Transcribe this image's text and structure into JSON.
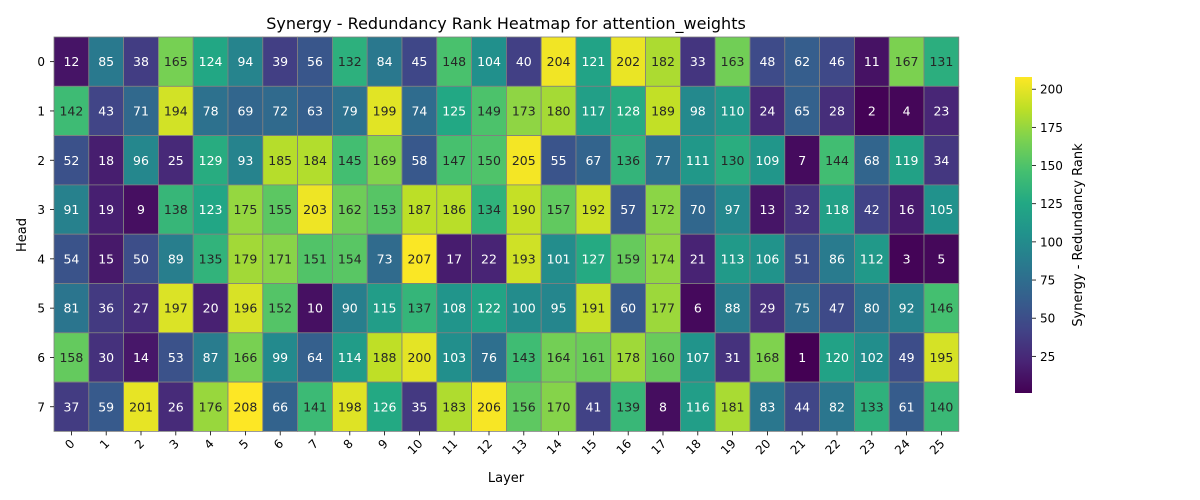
{
  "chart_data": {
    "type": "heatmap",
    "title": "Synergy - Redundancy Rank Heatmap for attention_weights",
    "xlabel": "Layer",
    "ylabel": "Head",
    "x_categories": [
      "0",
      "1",
      "2",
      "3",
      "4",
      "5",
      "6",
      "7",
      "8",
      "9",
      "10",
      "11",
      "12",
      "13",
      "14",
      "15",
      "16",
      "17",
      "18",
      "19",
      "20",
      "21",
      "22",
      "23",
      "24",
      "25"
    ],
    "y_categories": [
      "0",
      "1",
      "2",
      "3",
      "4",
      "5",
      "6",
      "7"
    ],
    "values": [
      [
        12,
        85,
        38,
        165,
        124,
        94,
        39,
        56,
        132,
        84,
        45,
        148,
        104,
        40,
        204,
        121,
        202,
        182,
        33,
        163,
        48,
        62,
        46,
        11,
        167,
        131
      ],
      [
        142,
        43,
        71,
        194,
        78,
        69,
        72,
        63,
        79,
        199,
        74,
        125,
        149,
        173,
        180,
        117,
        128,
        189,
        98,
        110,
        24,
        65,
        28,
        2,
        4,
        23
      ],
      [
        52,
        18,
        96,
        25,
        129,
        93,
        185,
        184,
        145,
        169,
        58,
        147,
        150,
        205,
        55,
        67,
        136,
        77,
        111,
        130,
        109,
        7,
        144,
        68,
        119,
        34
      ],
      [
        91,
        19,
        9,
        138,
        123,
        175,
        155,
        203,
        162,
        153,
        187,
        186,
        134,
        190,
        157,
        192,
        57,
        172,
        70,
        97,
        13,
        32,
        118,
        42,
        16,
        105
      ],
      [
        54,
        15,
        50,
        89,
        135,
        179,
        171,
        151,
        154,
        73,
        207,
        17,
        22,
        193,
        101,
        127,
        159,
        174,
        21,
        113,
        106,
        51,
        86,
        112,
        3,
        5
      ],
      [
        81,
        36,
        27,
        197,
        20,
        196,
        152,
        10,
        90,
        115,
        137,
        108,
        122,
        100,
        95,
        191,
        60,
        177,
        6,
        88,
        29,
        75,
        47,
        80,
        92,
        146
      ],
      [
        158,
        30,
        14,
        53,
        87,
        166,
        99,
        64,
        114,
        188,
        200,
        103,
        76,
        143,
        164,
        161,
        178,
        160,
        107,
        31,
        168,
        1,
        120,
        102,
        49,
        195
      ],
      [
        37,
        59,
        201,
        26,
        176,
        208,
        66,
        141,
        198,
        126,
        35,
        183,
        206,
        156,
        170,
        41,
        139,
        8,
        116,
        181,
        83,
        44,
        82,
        133,
        61,
        140
      ]
    ],
    "vmin": 1,
    "vmax": 208,
    "colormap": "viridis",
    "colorbar": {
      "label": "Synergy - Redundancy Rank",
      "ticks": [
        25,
        50,
        75,
        100,
        125,
        150,
        175,
        200
      ]
    }
  }
}
